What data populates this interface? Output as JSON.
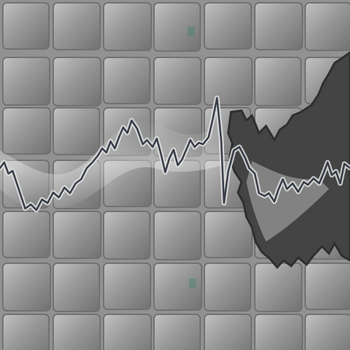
{
  "image": {
    "subject": "stylized-stock-line-over-tiled-grid",
    "colors": {
      "background": "#8f8f8f",
      "tile": "#9a9a9a",
      "tile_edge": "#5e5e5e",
      "tile_highlight": "#d9d9d9",
      "line": "#1b2230",
      "line_halo": "#f3f3f3",
      "dark_area": "#2b2b2b",
      "dark_area_edge": "#0f0f0f",
      "accent": "#3f7f6a"
    }
  }
}
